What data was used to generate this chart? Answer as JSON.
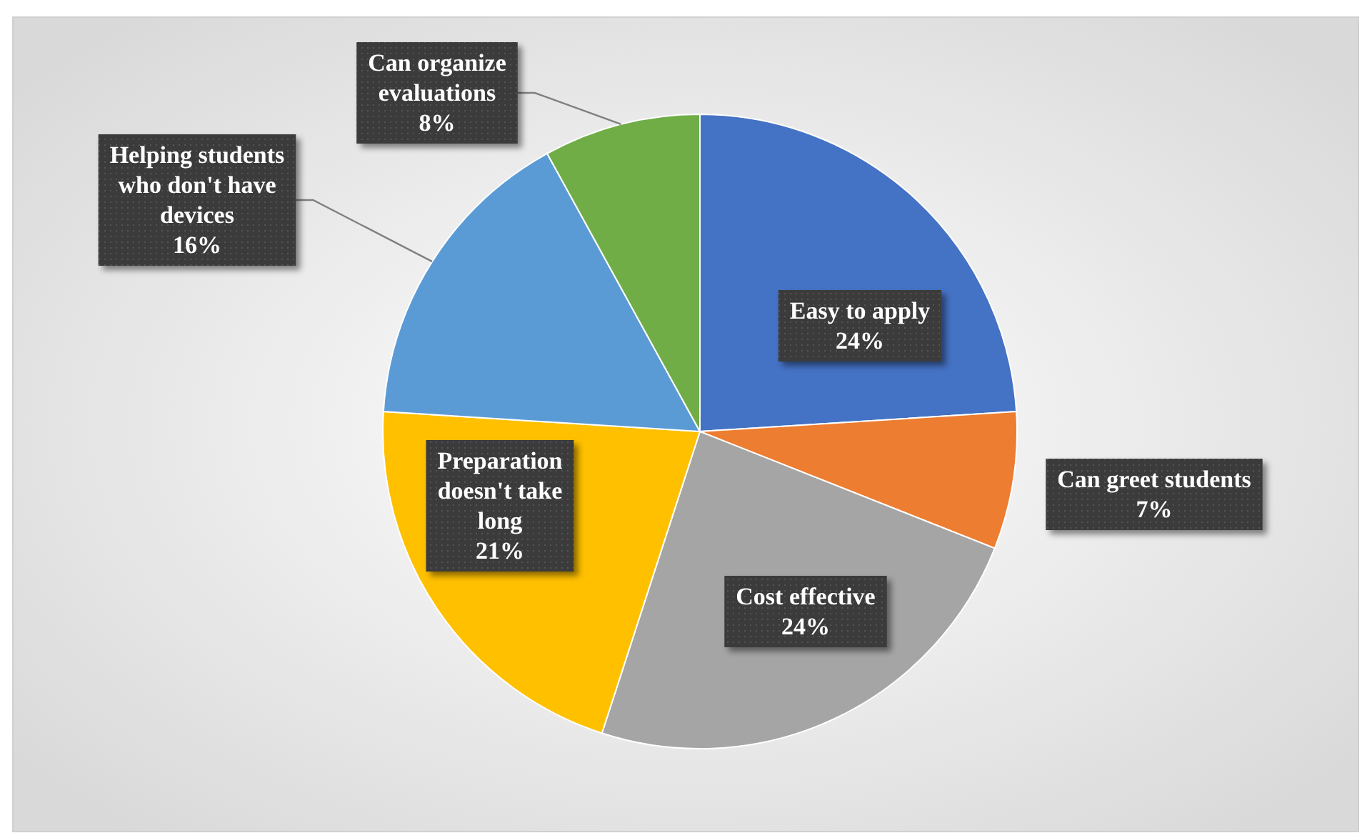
{
  "chart_data": {
    "type": "pie",
    "categories": [
      "Easy to apply",
      "Can greet students",
      "Cost effective",
      "Preparation doesn't take long",
      "Helping students who don't have devices",
      "Can organize evaluations"
    ],
    "values": [
      24,
      7,
      24,
      21,
      16,
      8
    ],
    "value_labels": [
      "24%",
      "7%",
      "24%",
      "21%",
      "16%",
      "8%"
    ],
    "colors": [
      "#4472c4",
      "#ed7d31",
      "#a5a5a5",
      "#ffc000",
      "#5b9bd5",
      "#70ad47"
    ]
  }
}
